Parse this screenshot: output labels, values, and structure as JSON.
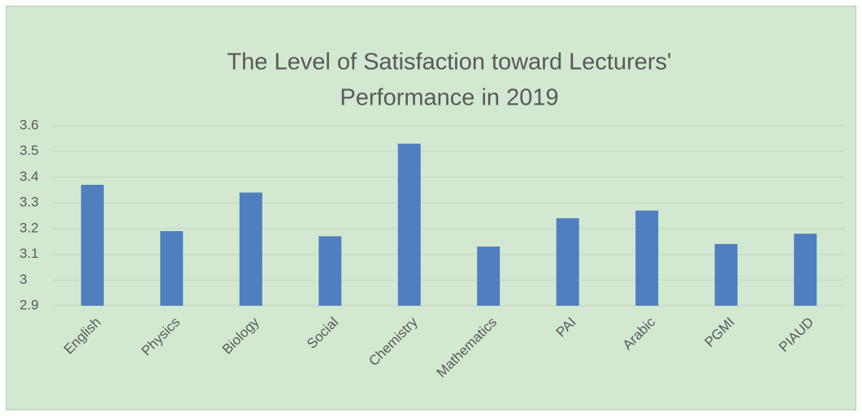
{
  "chart_data": {
    "type": "bar",
    "title": [
      "The Level of Satisfaction toward Lecturers'",
      "Performance in 2019"
    ],
    "categories": [
      "English",
      "Physics",
      "Biology",
      "Social",
      "Chemistry",
      "Mathematics",
      "PAI",
      "Arabic",
      "PGMI",
      "PIAUD"
    ],
    "values": [
      3.37,
      3.19,
      3.34,
      3.17,
      3.53,
      3.13,
      3.24,
      3.27,
      3.14,
      3.18
    ],
    "color": "#4f7fbf",
    "ylim": [
      2.9,
      3.6
    ],
    "yticks": [
      2.9,
      3,
      3.1,
      3.2,
      3.3,
      3.4,
      3.5,
      3.6
    ],
    "grid": true
  }
}
